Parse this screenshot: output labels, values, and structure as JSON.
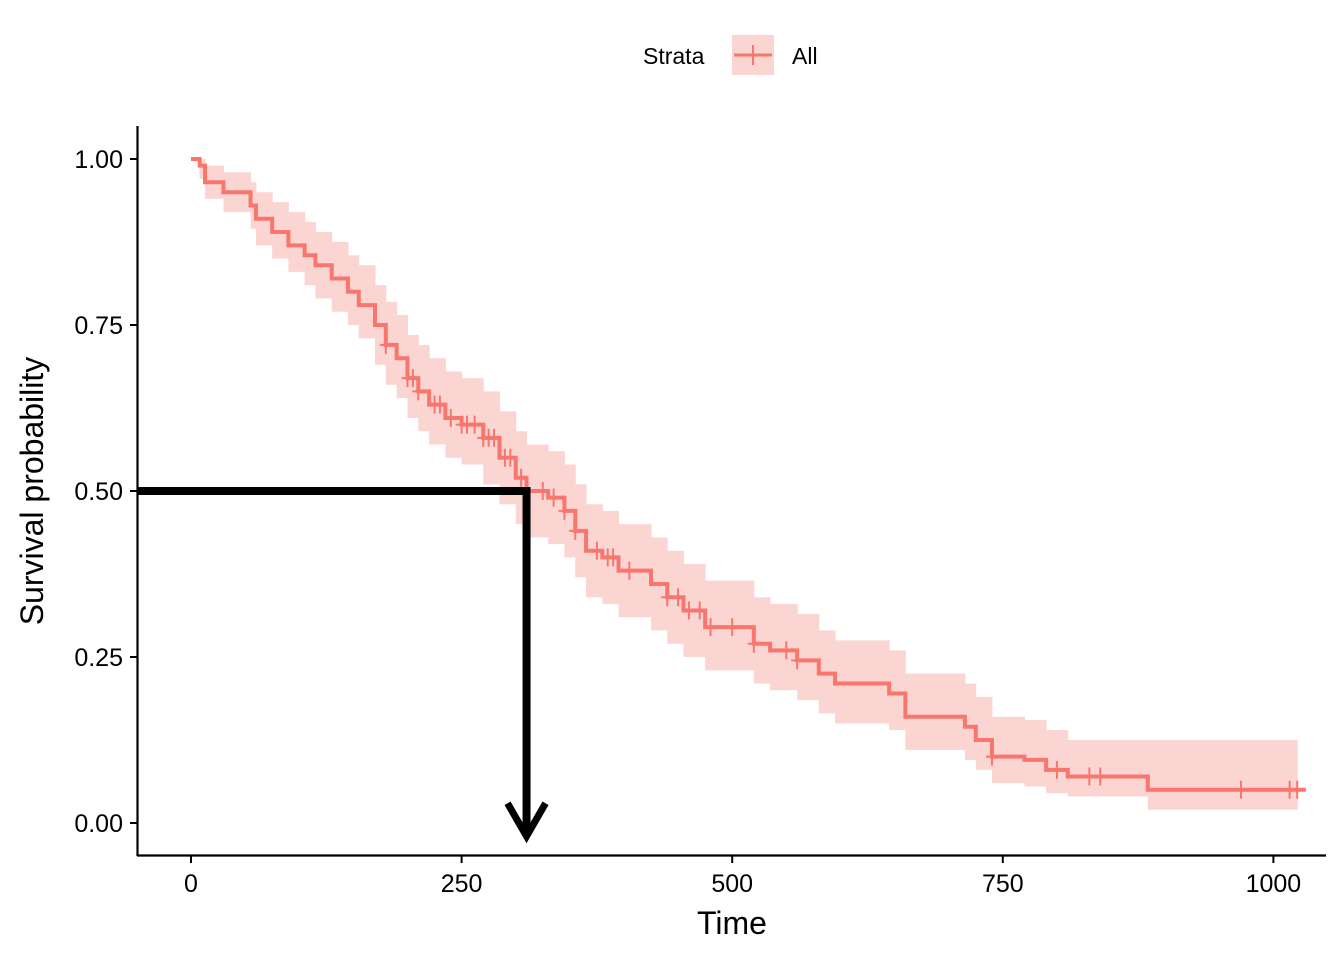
{
  "chart_data": {
    "type": "line",
    "subtype": "kaplan-meier step curve with confidence band",
    "title": "",
    "xlabel": "Time",
    "ylabel": "Survival probability",
    "xlim": [
      -49,
      1049
    ],
    "ylim": [
      -0.048,
      1.05
    ],
    "xticks": [
      0,
      250,
      500,
      750,
      1000
    ],
    "xtick_labels": [
      "0",
      "250",
      "500",
      "750",
      "1000"
    ],
    "yticks": [
      0,
      0.25,
      0.5,
      0.75,
      1
    ],
    "ytick_labels": [
      "0.00",
      "0.25",
      "0.50",
      "0.75",
      "1.00"
    ],
    "grid": false,
    "legend": {
      "placement": "top",
      "title": "Strata",
      "entries": [
        "All"
      ]
    },
    "color": "#F8766D",
    "band_color": "#FBD5D2",
    "series": [
      {
        "name": "All",
        "time": [
          0,
          8,
          13,
          30,
          55,
          60,
          75,
          90,
          105,
          115,
          130,
          145,
          155,
          170,
          180,
          190,
          200,
          210,
          220,
          235,
          250,
          270,
          285,
          300,
          310,
          330,
          345,
          355,
          365,
          380,
          395,
          425,
          440,
          455,
          475,
          520,
          535,
          560,
          580,
          595,
          645,
          660,
          715,
          725,
          740,
          770,
          790,
          810,
          884
        ],
        "surv": [
          1,
          0.99,
          0.965,
          0.95,
          0.93,
          0.91,
          0.89,
          0.87,
          0.855,
          0.84,
          0.82,
          0.8,
          0.78,
          0.75,
          0.72,
          0.7,
          0.67,
          0.65,
          0.63,
          0.61,
          0.6,
          0.58,
          0.55,
          0.52,
          0.5,
          0.49,
          0.47,
          0.44,
          0.41,
          0.4,
          0.38,
          0.36,
          0.34,
          0.32,
          0.295,
          0.27,
          0.26,
          0.245,
          0.225,
          0.21,
          0.195,
          0.16,
          0.145,
          0.125,
          0.1,
          0.095,
          0.08,
          0.07,
          0.05
        ],
        "upper": [
          1,
          1,
          0.99,
          0.98,
          0.965,
          0.95,
          0.935,
          0.92,
          0.905,
          0.89,
          0.875,
          0.855,
          0.84,
          0.81,
          0.785,
          0.765,
          0.735,
          0.72,
          0.7,
          0.68,
          0.67,
          0.65,
          0.62,
          0.59,
          0.57,
          0.56,
          0.54,
          0.51,
          0.48,
          0.47,
          0.45,
          0.43,
          0.41,
          0.39,
          0.365,
          0.34,
          0.33,
          0.315,
          0.29,
          0.275,
          0.26,
          0.225,
          0.21,
          0.19,
          0.16,
          0.155,
          0.14,
          0.125,
          0.125
        ],
        "lower": [
          1,
          0.97,
          0.94,
          0.92,
          0.895,
          0.87,
          0.85,
          0.83,
          0.81,
          0.79,
          0.77,
          0.75,
          0.73,
          0.69,
          0.66,
          0.64,
          0.61,
          0.59,
          0.57,
          0.55,
          0.54,
          0.51,
          0.48,
          0.45,
          0.43,
          0.42,
          0.4,
          0.37,
          0.34,
          0.33,
          0.31,
          0.29,
          0.27,
          0.25,
          0.23,
          0.21,
          0.2,
          0.185,
          0.165,
          0.15,
          0.14,
          0.11,
          0.095,
          0.08,
          0.06,
          0.055,
          0.045,
          0.04,
          0.02
        ],
        "end_time": 1030,
        "censor_times": [
          180,
          200,
          205,
          210,
          225,
          230,
          240,
          250,
          255,
          262,
          270,
          275,
          280,
          290,
          295,
          305,
          325,
          335,
          345,
          355,
          375,
          385,
          390,
          405,
          440,
          450,
          460,
          470,
          480,
          500,
          520,
          550,
          560,
          740,
          800,
          830,
          840,
          970,
          1015,
          1022
        ]
      }
    ],
    "annotations": {
      "median_survival_time": 310,
      "median_probability": 0.5,
      "arrow_color": "#000000"
    }
  }
}
